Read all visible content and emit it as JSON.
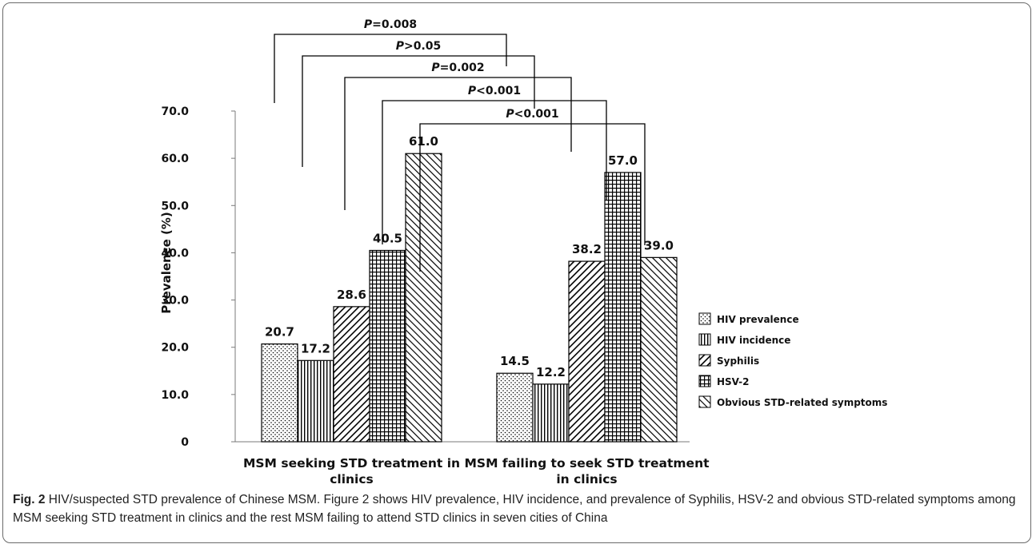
{
  "caption": {
    "label": "Fig. 2",
    "text": "HIV/suspected STD prevalence of Chinese MSM. Figure 2 shows HIV prevalence, HIV incidence, and prevalence of Syphilis, HSV-2 and obvious STD-related symptoms among MSM seeking STD treatment in clinics and the rest MSM failing to attend STD clinics in seven cities of China"
  },
  "chart_data": {
    "type": "bar",
    "title": "",
    "xlabel": "",
    "ylabel": "Prevalence (%)",
    "ylim": [
      0,
      70
    ],
    "yticks": [
      "0",
      "10.0",
      "20.0",
      "30.0",
      "40.0",
      "50.0",
      "60.0",
      "70.0"
    ],
    "grid": false,
    "legend_position": "right",
    "categories": [
      [
        "MSM seeking STD treatment in",
        "clinics"
      ],
      [
        "MSM failing to seek STD treatment",
        "in clinics"
      ]
    ],
    "series": [
      {
        "name": "HIV prevalence",
        "pattern": "dots",
        "values": [
          20.7,
          14.5
        ],
        "labels": [
          "20.7",
          "14.5"
        ]
      },
      {
        "name": "HIV incidence",
        "pattern": "vertical",
        "values": [
          17.2,
          12.2
        ],
        "labels": [
          "17.2",
          "12.2"
        ]
      },
      {
        "name": "Syphilis",
        "pattern": "diag-down",
        "values": [
          28.6,
          38.2
        ],
        "labels": [
          "28.6",
          "38.2"
        ]
      },
      {
        "name": "HSV-2",
        "pattern": "grid",
        "values": [
          40.5,
          57.0
        ],
        "labels": [
          "40.5",
          "57.0"
        ]
      },
      {
        "name": "Obvious STD-related symptoms",
        "pattern": "diag-up",
        "values": [
          61.0,
          39.0
        ],
        "labels": [
          "61.0",
          "39.0"
        ]
      }
    ],
    "annotations": [
      {
        "label": "P=0.008",
        "series": 0
      },
      {
        "label": "P>0.05",
        "series": 1
      },
      {
        "label": "P=0.002",
        "series": 2
      },
      {
        "label": "P<0.001",
        "series": 3
      },
      {
        "label": "P<0.001",
        "series": 4
      }
    ],
    "colors": {
      "bar_fill": "#ffffff",
      "stroke": "#000000"
    }
  }
}
